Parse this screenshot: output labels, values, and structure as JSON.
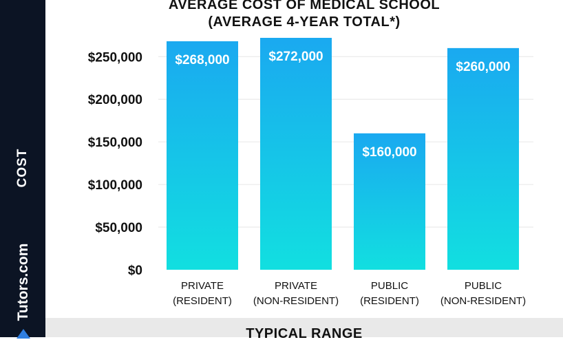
{
  "chart_data": {
    "type": "bar",
    "title": "AVERAGE COST OF MEDICAL SCHOOL",
    "subtitle": "(AVERAGE 4-YEAR TOTAL*)",
    "ylabel": "COST",
    "xlabel": "",
    "categories": [
      [
        "PRIVATE",
        "(RESIDENT)"
      ],
      [
        "PRIVATE",
        "(NON-RESIDENT)"
      ],
      [
        "PUBLIC",
        "(RESIDENT)"
      ],
      [
        "PUBLIC",
        "(NON-RESIDENT)"
      ]
    ],
    "values": [
      268000,
      272000,
      160000,
      260000
    ],
    "data_labels": [
      "$268,000",
      "$272,000",
      "$160,000",
      "$260,000"
    ],
    "ylim": [
      0,
      272000
    ],
    "yticks": [
      0,
      50000,
      100000,
      150000,
      200000,
      250000
    ],
    "ytick_labels": [
      "$0",
      "$50,000",
      "$100,000",
      "$150,000",
      "$200,000",
      "$250,000"
    ],
    "grid": true,
    "bar_gradient": [
      "#1aa9f0",
      "#12dfe0"
    ]
  },
  "branding": {
    "text": "Tutors.com"
  },
  "footer": {
    "text": "TYPICAL RANGE"
  },
  "colors": {
    "sidebar": "#0c1424",
    "footer_band": "#e9e9e9",
    "grid": "#e6e6e6",
    "text": "#111111"
  }
}
